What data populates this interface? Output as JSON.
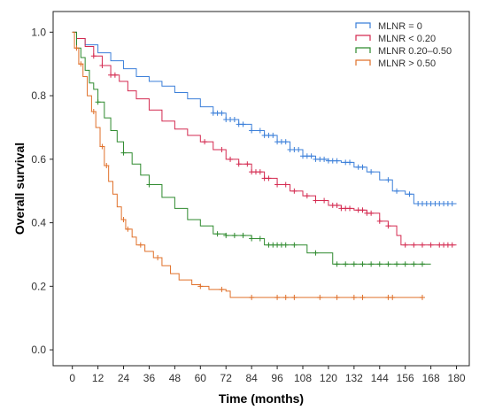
{
  "chart_data": {
    "type": "line",
    "xlabel": "Time (months)",
    "ylabel": "Overall survival",
    "xlim": [
      -9,
      186
    ],
    "ylim": [
      -0.05,
      1.065
    ],
    "xticks": [
      0,
      12,
      24,
      36,
      48,
      60,
      72,
      84,
      96,
      108,
      120,
      132,
      144,
      156,
      168,
      180
    ],
    "yticks": [
      "0.0",
      "0.2",
      "0.4",
      "0.6",
      "0.8",
      "1.0"
    ],
    "grid": false,
    "legend_position": "top-right",
    "step": true,
    "series": [
      {
        "name": "MLNR = 0",
        "color": "#3b7fd9",
        "points": [
          [
            0,
            1.0
          ],
          [
            2,
            0.98
          ],
          [
            6,
            0.96
          ],
          [
            12,
            0.935
          ],
          [
            18,
            0.91
          ],
          [
            24,
            0.885
          ],
          [
            30,
            0.86
          ],
          [
            36,
            0.845
          ],
          [
            42,
            0.83
          ],
          [
            48,
            0.81
          ],
          [
            54,
            0.79
          ],
          [
            60,
            0.765
          ],
          [
            66,
            0.745
          ],
          [
            72,
            0.725
          ],
          [
            78,
            0.71
          ],
          [
            84,
            0.69
          ],
          [
            90,
            0.675
          ],
          [
            96,
            0.655
          ],
          [
            102,
            0.63
          ],
          [
            108,
            0.61
          ],
          [
            114,
            0.6
          ],
          [
            120,
            0.595
          ],
          [
            126,
            0.59
          ],
          [
            132,
            0.575
          ],
          [
            138,
            0.56
          ],
          [
            144,
            0.535
          ],
          [
            150,
            0.5
          ],
          [
            156,
            0.49
          ],
          [
            160,
            0.46
          ],
          [
            180,
            0.46
          ]
        ],
        "censored": [
          66,
          68,
          70,
          72,
          74,
          76,
          78,
          80,
          84,
          88,
          90,
          92,
          94,
          96,
          98,
          100,
          102,
          104,
          106,
          108,
          110,
          112,
          114,
          116,
          118,
          120,
          122,
          124,
          128,
          130,
          134,
          136,
          140,
          148,
          152,
          158,
          162,
          164,
          166,
          168,
          170,
          172,
          174,
          176,
          178
        ]
      },
      {
        "name": "MLNR < 0.20",
        "color": "#d42a50",
        "points": [
          [
            0,
            1.0
          ],
          [
            2,
            0.98
          ],
          [
            6,
            0.955
          ],
          [
            10,
            0.925
          ],
          [
            14,
            0.895
          ],
          [
            18,
            0.865
          ],
          [
            22,
            0.845
          ],
          [
            26,
            0.815
          ],
          [
            30,
            0.79
          ],
          [
            36,
            0.755
          ],
          [
            42,
            0.72
          ],
          [
            48,
            0.695
          ],
          [
            54,
            0.675
          ],
          [
            60,
            0.655
          ],
          [
            66,
            0.63
          ],
          [
            72,
            0.6
          ],
          [
            78,
            0.585
          ],
          [
            84,
            0.56
          ],
          [
            90,
            0.54
          ],
          [
            96,
            0.52
          ],
          [
            102,
            0.5
          ],
          [
            108,
            0.485
          ],
          [
            114,
            0.47
          ],
          [
            120,
            0.455
          ],
          [
            126,
            0.445
          ],
          [
            132,
            0.44
          ],
          [
            138,
            0.43
          ],
          [
            144,
            0.405
          ],
          [
            148,
            0.39
          ],
          [
            152,
            0.36
          ],
          [
            154,
            0.33
          ],
          [
            180,
            0.33
          ]
        ],
        "censored": [
          10,
          14,
          18,
          20,
          62,
          70,
          74,
          78,
          82,
          84,
          86,
          88,
          90,
          92,
          96,
          100,
          104,
          110,
          114,
          118,
          122,
          124,
          126,
          128,
          130,
          134,
          136,
          138,
          140,
          144,
          148,
          156,
          160,
          164,
          168,
          172,
          174,
          176,
          178
        ]
      },
      {
        "name": "MLNR 0.20–0.50",
        "color": "#2e8a2e",
        "points": [
          [
            0,
            1.0
          ],
          [
            2,
            0.95
          ],
          [
            4,
            0.92
          ],
          [
            6,
            0.88
          ],
          [
            8,
            0.84
          ],
          [
            10,
            0.82
          ],
          [
            12,
            0.78
          ],
          [
            15,
            0.73
          ],
          [
            18,
            0.69
          ],
          [
            21,
            0.655
          ],
          [
            24,
            0.62
          ],
          [
            28,
            0.585
          ],
          [
            32,
            0.55
          ],
          [
            36,
            0.52
          ],
          [
            42,
            0.48
          ],
          [
            48,
            0.445
          ],
          [
            54,
            0.41
          ],
          [
            60,
            0.39
          ],
          [
            66,
            0.365
          ],
          [
            72,
            0.36
          ],
          [
            84,
            0.35
          ],
          [
            90,
            0.33
          ],
          [
            108,
            0.33
          ],
          [
            110,
            0.305
          ],
          [
            120,
            0.305
          ],
          [
            122,
            0.27
          ],
          [
            168,
            0.27
          ]
        ],
        "censored": [
          12,
          24,
          36,
          68,
          72,
          76,
          80,
          84,
          88,
          92,
          94,
          96,
          98,
          100,
          104,
          114,
          124,
          128,
          132,
          136,
          140,
          144,
          148,
          152,
          156,
          160,
          164
        ]
      },
      {
        "name": "MLNR > 0.50",
        "color": "#e0702a",
        "points": [
          [
            0,
            1.0
          ],
          [
            1,
            0.95
          ],
          [
            3,
            0.9
          ],
          [
            5,
            0.86
          ],
          [
            7,
            0.8
          ],
          [
            9,
            0.75
          ],
          [
            11,
            0.7
          ],
          [
            13,
            0.64
          ],
          [
            15,
            0.58
          ],
          [
            17,
            0.53
          ],
          [
            19,
            0.49
          ],
          [
            21,
            0.45
          ],
          [
            23,
            0.41
          ],
          [
            25,
            0.38
          ],
          [
            28,
            0.355
          ],
          [
            30,
            0.33
          ],
          [
            34,
            0.31
          ],
          [
            38,
            0.29
          ],
          [
            42,
            0.265
          ],
          [
            46,
            0.24
          ],
          [
            50,
            0.22
          ],
          [
            56,
            0.205
          ],
          [
            60,
            0.2
          ],
          [
            64,
            0.19
          ],
          [
            72,
            0.185
          ],
          [
            74,
            0.165
          ],
          [
            164,
            0.165
          ]
        ],
        "censored": [
          2,
          4,
          10,
          14,
          16,
          24,
          26,
          32,
          40,
          60,
          70,
          84,
          96,
          100,
          104,
          116,
          124,
          132,
          136,
          148,
          150,
          164
        ]
      }
    ]
  }
}
